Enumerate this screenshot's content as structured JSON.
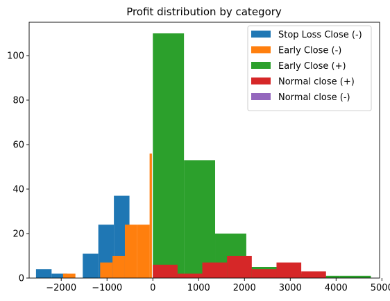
{
  "chart_data": {
    "type": "bar",
    "title": "Profit distribution by category",
    "xlabel": "",
    "ylabel": "",
    "xlim": [
      -2700,
      4950
    ],
    "ylim": [
      0,
      115
    ],
    "xticks": [
      -2000,
      -1000,
      0,
      1000,
      2000,
      3000,
      4000,
      5000
    ],
    "xtick_labels": [
      "−2000",
      "−1000",
      "0",
      "1000",
      "2000",
      "3000",
      "4000",
      "5000"
    ],
    "yticks": [
      0,
      20,
      40,
      60,
      80,
      100
    ],
    "ytick_labels": [
      "0",
      "20",
      "40",
      "60",
      "80",
      "100"
    ],
    "grid": false,
    "legend_position": "top-right",
    "series": [
      {
        "name": "Stop Loss Close (-)",
        "color": "#1f77b4",
        "bins": [
          {
            "x0": -2550,
            "x1": -2210,
            "count": 4
          },
          {
            "x0": -2210,
            "x1": -1870,
            "count": 2
          },
          {
            "x0": -1870,
            "x1": -1530,
            "count": 0
          },
          {
            "x0": -1530,
            "x1": -1190,
            "count": 11
          },
          {
            "x0": -1190,
            "x1": -850,
            "count": 24
          },
          {
            "x0": -850,
            "x1": -510,
            "count": 37
          }
        ]
      },
      {
        "name": "Early Close (-)",
        "color": "#ff7f0e",
        "bins": [
          {
            "x0": -1960,
            "x1": -1690,
            "count": 2
          },
          {
            "x0": -1690,
            "x1": -1420,
            "count": 0
          },
          {
            "x0": -1420,
            "x1": -1150,
            "count": 0
          },
          {
            "x0": -1150,
            "x1": -880,
            "count": 7
          },
          {
            "x0": -880,
            "x1": -610,
            "count": 10
          },
          {
            "x0": -610,
            "x1": -340,
            "count": 24
          },
          {
            "x0": -340,
            "x1": -70,
            "count": 24
          },
          {
            "x0": -70,
            "x1": -20,
            "count": 56
          }
        ]
      },
      {
        "name": "Early Close (+)",
        "color": "#2ca02c",
        "bins": [
          {
            "x0": 0,
            "x1": 680,
            "count": 110
          },
          {
            "x0": 680,
            "x1": 1360,
            "count": 53
          },
          {
            "x0": 1360,
            "x1": 2040,
            "count": 20
          },
          {
            "x0": 2040,
            "x1": 2720,
            "count": 5
          },
          {
            "x0": 2720,
            "x1": 3400,
            "count": 2
          },
          {
            "x0": 3400,
            "x1": 4080,
            "count": 1
          },
          {
            "x0": 4080,
            "x1": 4760,
            "count": 1
          }
        ]
      },
      {
        "name": "Normal close (+)",
        "color": "#d62728",
        "bins": [
          {
            "x0": 0,
            "x1": 540,
            "count": 6
          },
          {
            "x0": 540,
            "x1": 1080,
            "count": 2
          },
          {
            "x0": 1080,
            "x1": 1620,
            "count": 7
          },
          {
            "x0": 1620,
            "x1": 2160,
            "count": 10
          },
          {
            "x0": 2160,
            "x1": 2700,
            "count": 4
          },
          {
            "x0": 2700,
            "x1": 3240,
            "count": 7
          },
          {
            "x0": 3240,
            "x1": 3780,
            "count": 3
          }
        ]
      },
      {
        "name": "Normal close (-)",
        "color": "#9467bd",
        "bins": []
      }
    ]
  }
}
